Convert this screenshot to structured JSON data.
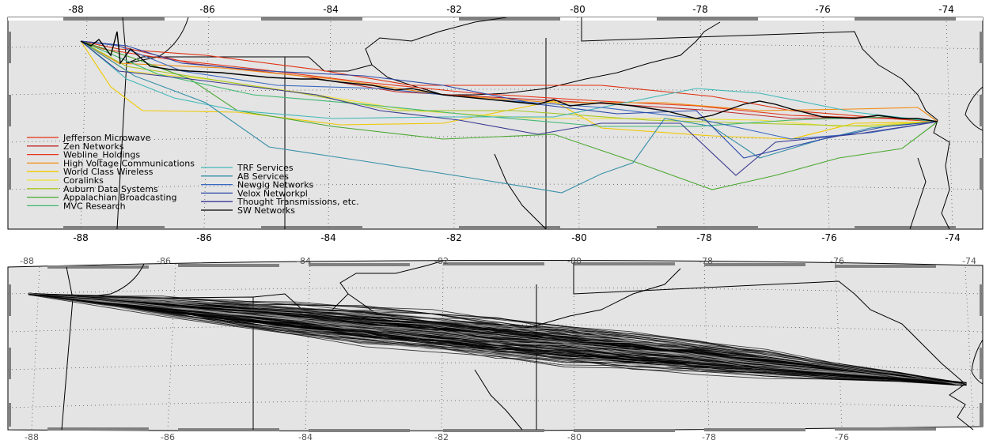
{
  "top_map": {
    "top_ticks": [
      "-88",
      "-86",
      "-84",
      "-82",
      "-80",
      "-78",
      "-76",
      "-74"
    ],
    "bottom_ticks": [
      "-88",
      "-86",
      "-84",
      "-82",
      "-80",
      "-78",
      "-76",
      "-74"
    ],
    "legend_col1": [
      {
        "label": "Jefferson Microwave",
        "color": "#e03010"
      },
      {
        "label": "Zen Networks",
        "color": "#c02828"
      },
      {
        "label": "Webline_Holdings",
        "color": "#e83418"
      },
      {
        "label": "High Voltage Communications",
        "color": "#f08c10"
      },
      {
        "label": "World Class Wireless",
        "color": "#f0c800"
      },
      {
        "label": "Coralinks",
        "color": "#f0e030"
      },
      {
        "label": "Auburn Data Systems",
        "color": "#a8c820"
      },
      {
        "label": "Appalachian Broadcasting",
        "color": "#4aa830"
      },
      {
        "label": "MVC Research",
        "color": "#40b870"
      }
    ],
    "legend_col2": [
      {
        "label": "TRF Services",
        "color": "#40b8b8"
      },
      {
        "label": "AB Services",
        "color": "#3890a8"
      },
      {
        "label": "Newgig Networks",
        "color": "#3868c0"
      },
      {
        "label": "Velox Networkpl",
        "color": "#2848a8"
      },
      {
        "label": "Thought Transmissions, etc.",
        "color": "#383890"
      },
      {
        "label": "SW Networks",
        "color": "#000000"
      }
    ]
  },
  "bottom_map": {
    "top_ticks": [
      "-88",
      "-86",
      "-84",
      "-82",
      "-80",
      "-78",
      "-76",
      "-74"
    ],
    "bottom_ticks": [
      "-88",
      "-86",
      "-84",
      "-82",
      "-80",
      "-78",
      "-76"
    ]
  },
  "colors": {
    "land": "#e4e4e4",
    "border": "#000000",
    "grid": "#555555",
    "frame": "#808080"
  }
}
